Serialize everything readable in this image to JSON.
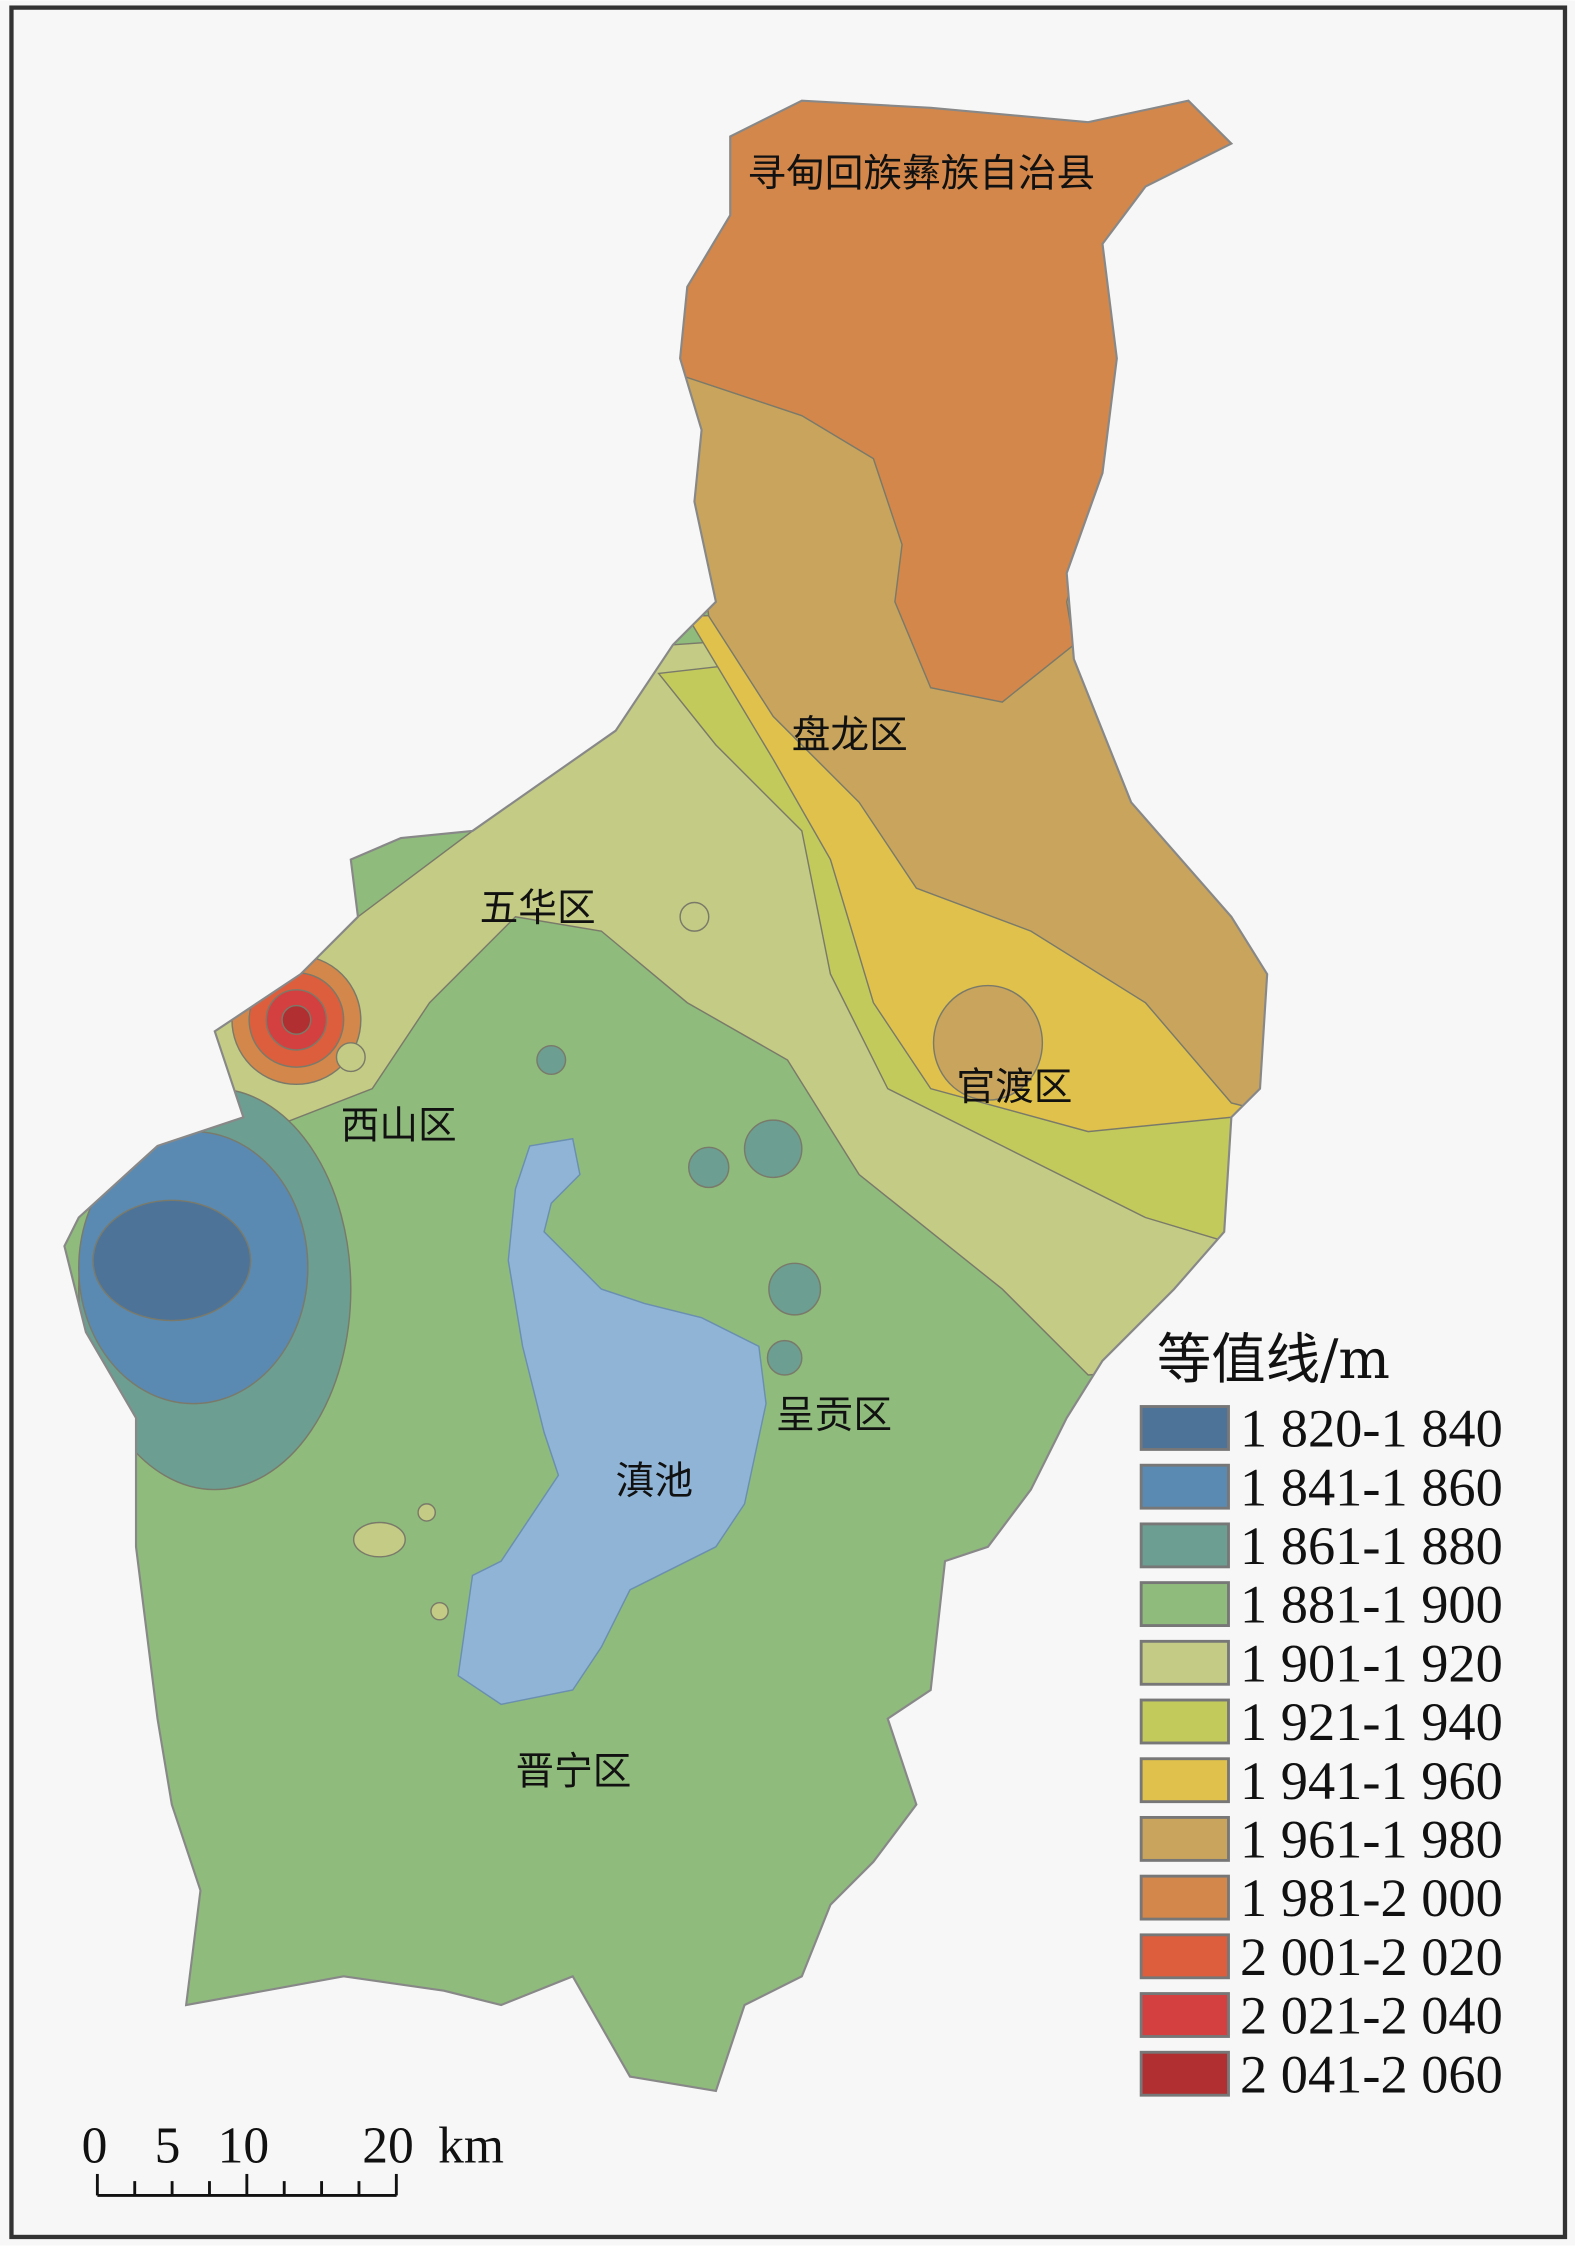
{
  "map": {
    "place_labels": {
      "xundian": "寻甸回族彝族自治县",
      "panlong": "盘龙区",
      "wuhua": "五华区",
      "guandu": "官渡区",
      "xishan": "西山区",
      "chenggong": "呈贡区",
      "dianchi": "滇池",
      "jinning": "晋宁区"
    },
    "colors": {
      "c1820": "#4d7399",
      "c1841": "#5a8ab2",
      "c1861": "#6c9e91",
      "c1881": "#8fbb7c",
      "c1901": "#c4cb84",
      "c1921": "#c3ca5c",
      "c1941": "#dfc14c",
      "c1961": "#c9a45d",
      "c1981": "#d3874a",
      "c2001": "#dd5e3c",
      "c2021": "#d3403f",
      "c2041": "#b12f30",
      "lake": "#8fb4d6",
      "outside": "#f7f7f7"
    }
  },
  "legend": {
    "title": "等值线/m",
    "items": [
      {
        "label": "1 820-1 840",
        "color": "#4d7399"
      },
      {
        "label": "1 841-1 860",
        "color": "#5a8ab2"
      },
      {
        "label": "1 861-1 880",
        "color": "#6c9e91"
      },
      {
        "label": "1 881-1 900",
        "color": "#8fbb7c"
      },
      {
        "label": "1 901-1 920",
        "color": "#c4cb84"
      },
      {
        "label": "1 921-1 940",
        "color": "#c3ca5c"
      },
      {
        "label": "1 941-1 960",
        "color": "#dfc14c"
      },
      {
        "label": "1 961-1 980",
        "color": "#c9a45d"
      },
      {
        "label": "1 981-2 000",
        "color": "#d3874a"
      },
      {
        "label": "2 001-2 020",
        "color": "#dd5e3c"
      },
      {
        "label": "2 021-2 040",
        "color": "#d3403f"
      },
      {
        "label": "2 041-2 060",
        "color": "#b12f30"
      }
    ]
  },
  "scale_bar": {
    "ticks": [
      "0",
      "5",
      "10",
      "20"
    ],
    "unit": "km"
  }
}
